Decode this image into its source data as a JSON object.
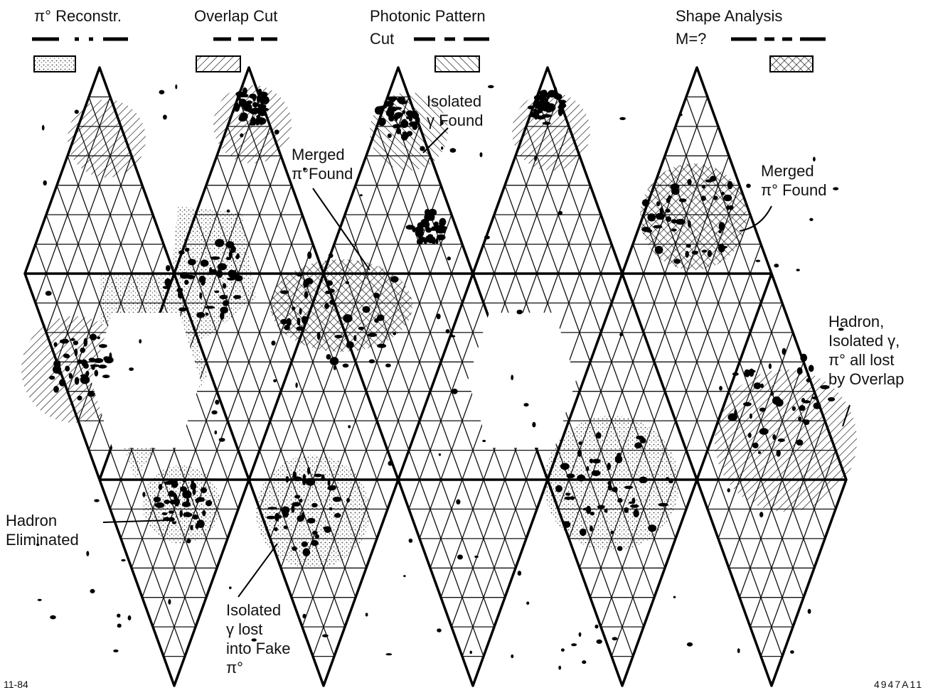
{
  "legend": [
    {
      "label": [
        "π° Reconstr."
      ]
    },
    {
      "label": [
        "Overlap Cut"
      ]
    },
    {
      "label": [
        "Photonic Pattern",
        "Cut"
      ]
    },
    {
      "label": [
        "Shape Analysis",
        "M=?"
      ]
    }
  ],
  "annotations": [
    {
      "lines": [
        "Isolated",
        "γ Found"
      ]
    },
    {
      "lines": [
        "Merged",
        "π°Found"
      ]
    },
    {
      "lines": [
        "Merged",
        "π° Found"
      ]
    },
    {
      "lines": [
        "Hadron,",
        "Isolated γ,",
        "π° all lost",
        "by Overlap"
      ]
    },
    {
      "lines": [
        "Hadron",
        "Eliminated"
      ]
    },
    {
      "lines": [
        "Isolated",
        "γ lost",
        "into Fake",
        "π°"
      ]
    }
  ],
  "footer": {
    "left": "11-84",
    "right": "4947A11"
  }
}
